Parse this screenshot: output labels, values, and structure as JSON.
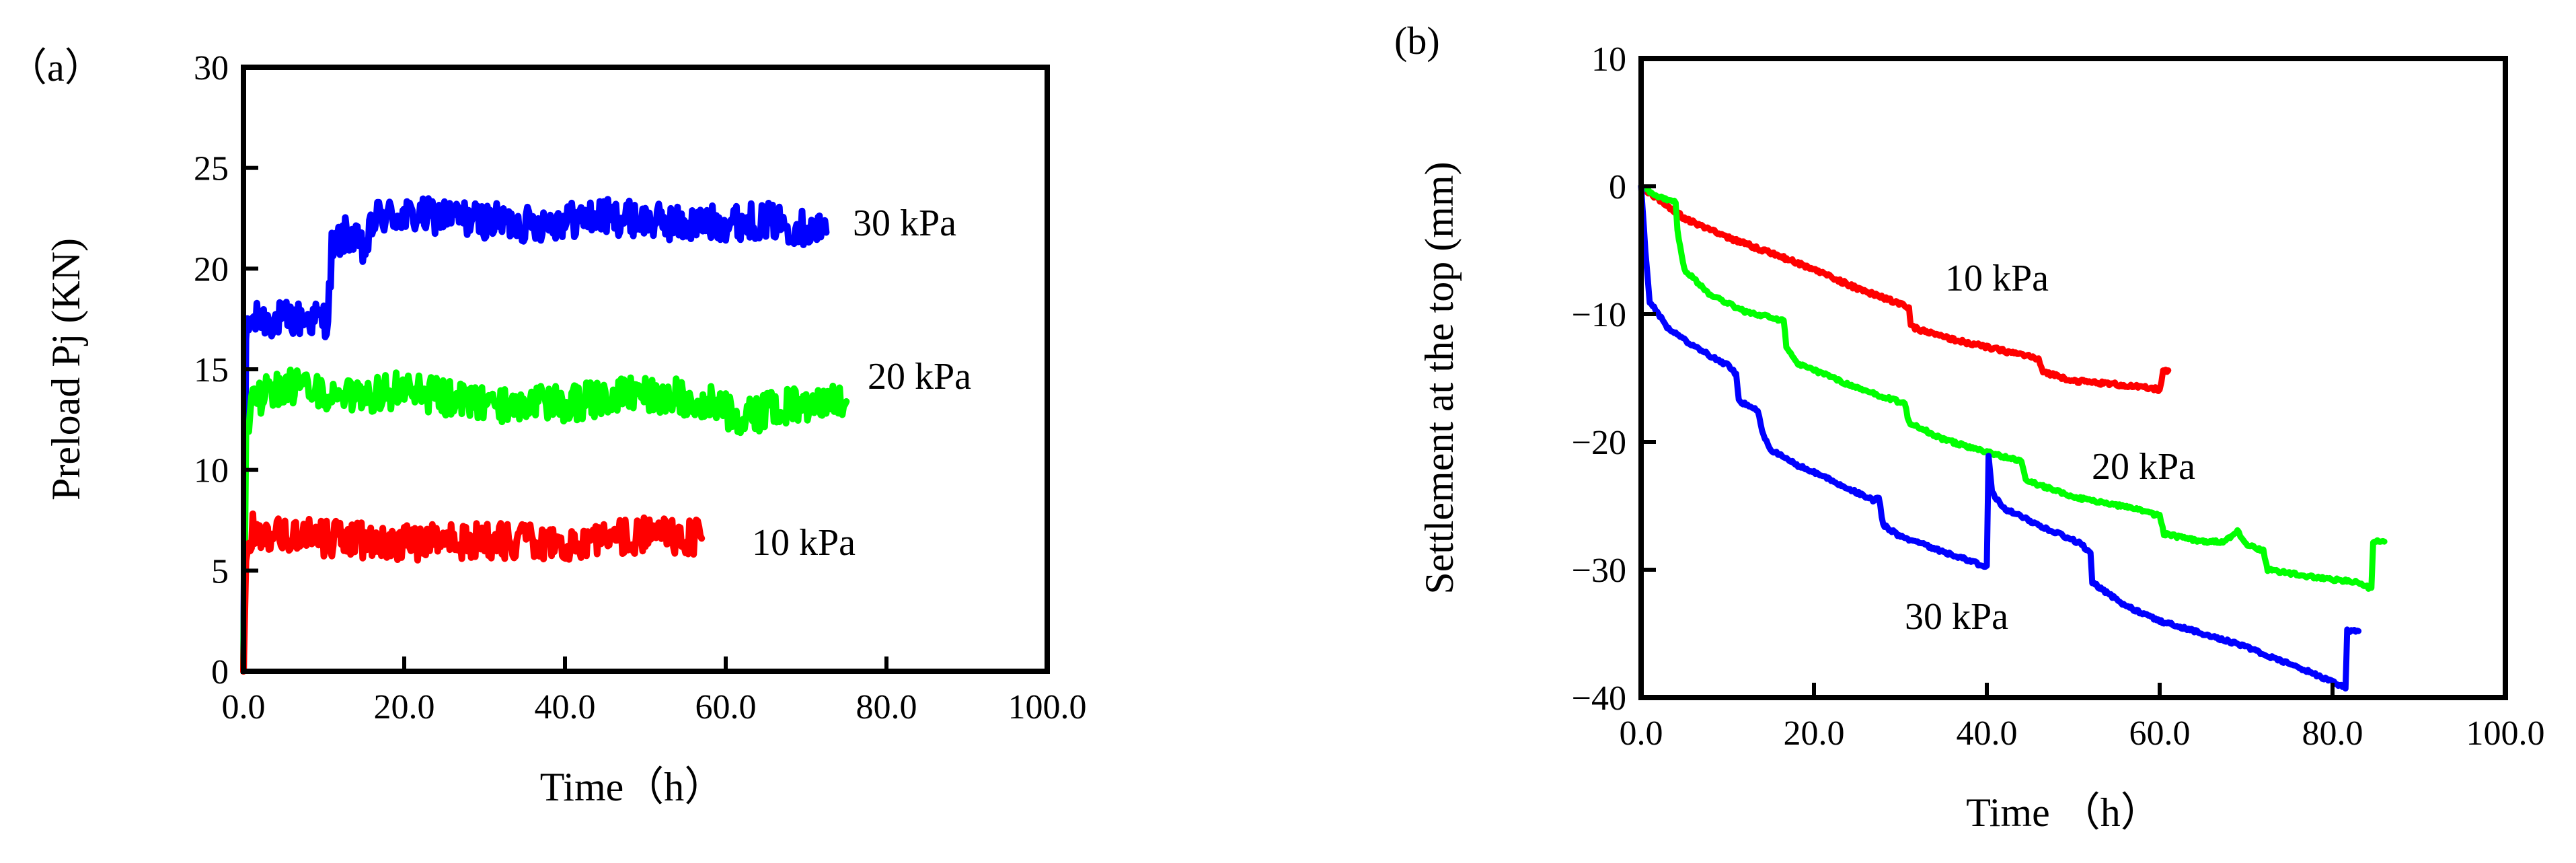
{
  "chart_data": [
    {
      "panel_label": "（a）",
      "type": "line",
      "title": "",
      "xlabel": "Time（h）",
      "ylabel": "Preload Pj (KN)",
      "xlim": [
        0,
        100
      ],
      "ylim": [
        0,
        30
      ],
      "xticks": [
        0,
        20,
        40,
        60,
        80,
        100
      ],
      "xtick_labels": [
        "0.0",
        "20.0",
        "40.0",
        "60.0",
        "80.0",
        "100.0"
      ],
      "yticks": [
        0,
        5,
        10,
        15,
        20,
        25,
        30
      ],
      "ytick_labels": [
        "0",
        "5",
        "10",
        "15",
        "20",
        "25",
        "30"
      ],
      "grid": false,
      "series": [
        {
          "name": "30 kPa",
          "label": "30 kPa",
          "color": "#0000ff",
          "noise": 0.9,
          "points": [
            [
              0,
              0
            ],
            [
              0.3,
              16.5
            ],
            [
              1,
              17.4
            ],
            [
              5,
              17.5
            ],
            [
              10.5,
              17.5
            ],
            [
              11,
              21.0
            ],
            [
              13,
              21.8
            ],
            [
              15,
              20.8
            ],
            [
              16.5,
              22.6
            ],
            [
              25,
              22.6
            ],
            [
              35,
              22.2
            ],
            [
              45,
              22.6
            ],
            [
              55,
              22.2
            ],
            [
              65,
              22.4
            ],
            [
              72.5,
              21.8
            ]
          ]
        },
        {
          "name": "20 kPa",
          "label": "20 kPa",
          "color": "#00ff00",
          "noise": 0.9,
          "points": [
            [
              0,
              0
            ],
            [
              0.3,
              12.0
            ],
            [
              1,
              13.5
            ],
            [
              5,
              14.2
            ],
            [
              12,
              13.5
            ],
            [
              20,
              14.0
            ],
            [
              30,
              13.2
            ],
            [
              40,
              13.3
            ],
            [
              50,
              13.8
            ],
            [
              57,
              13.5
            ],
            [
              62,
              12.6
            ],
            [
              68,
              13.2
            ],
            [
              75,
              13.4
            ]
          ]
        },
        {
          "name": "10 kPa",
          "label": "10 kPa",
          "color": "#ff0000",
          "noise": 0.9,
          "points": [
            [
              0,
              0
            ],
            [
              0.3,
              5.5
            ],
            [
              1,
              7.0
            ],
            [
              10,
              6.6
            ],
            [
              20,
              6.4
            ],
            [
              30,
              6.5
            ],
            [
              40,
              6.3
            ],
            [
              50,
              6.8
            ],
            [
              57,
              6.6
            ]
          ]
        }
      ]
    },
    {
      "panel_label": "(b)",
      "type": "line",
      "title": "",
      "xlabel": "Time （h）",
      "ylabel": "Settlement at the top (mm)",
      "xlim": [
        0,
        100
      ],
      "ylim": [
        -40,
        10
      ],
      "xticks": [
        0,
        20,
        40,
        60,
        80,
        100
      ],
      "xtick_labels": [
        "0.0",
        "20.0",
        "40.0",
        "60.0",
        "80.0",
        "100.0"
      ],
      "yticks": [
        -40,
        -30,
        -20,
        -10,
        0,
        10
      ],
      "ytick_labels": [
        "−40",
        "−30",
        "−20",
        "−10",
        "0",
        "10"
      ],
      "grid": false,
      "series": [
        {
          "name": "10 kPa",
          "label": "10 kPa",
          "color": "#ff0000",
          "noise": 0.15,
          "points": [
            [
              0,
              0
            ],
            [
              2,
              -1.0
            ],
            [
              5,
              -2.5
            ],
            [
              10,
              -4.0
            ],
            [
              15,
              -5.2
            ],
            [
              20,
              -6.5
            ],
            [
              25,
              -8.0
            ],
            [
              30,
              -9.2
            ],
            [
              31,
              -9.5
            ],
            [
              31.2,
              -11.0
            ],
            [
              35,
              -11.8
            ],
            [
              40,
              -12.6
            ],
            [
              45,
              -13.3
            ],
            [
              46,
              -13.6
            ],
            [
              46.5,
              -14.5
            ],
            [
              50,
              -15.2
            ],
            [
              55,
              -15.5
            ],
            [
              60,
              -15.9
            ],
            [
              60.4,
              -14.5
            ],
            [
              61,
              -14.4
            ]
          ]
        },
        {
          "name": "20 kPa",
          "label": "20 kPa",
          "color": "#00ff00",
          "noise": 0.12,
          "points": [
            [
              0,
              0
            ],
            [
              2,
              -0.8
            ],
            [
              4,
              -1.2
            ],
            [
              4.2,
              -3.5
            ],
            [
              5,
              -6.5
            ],
            [
              8,
              -8.5
            ],
            [
              12,
              -9.8
            ],
            [
              16.5,
              -10.5
            ],
            [
              16.8,
              -12.5
            ],
            [
              18,
              -13.8
            ],
            [
              25,
              -15.8
            ],
            [
              30.5,
              -17.0
            ],
            [
              31,
              -18.5
            ],
            [
              35,
              -19.8
            ],
            [
              40,
              -20.8
            ],
            [
              44,
              -21.5
            ],
            [
              44.5,
              -23.0
            ],
            [
              50,
              -24.3
            ],
            [
              57,
              -25.2
            ],
            [
              60,
              -25.8
            ],
            [
              60.5,
              -27.2
            ],
            [
              65,
              -27.8
            ],
            [
              67.5,
              -27.8
            ],
            [
              69,
              -27.0
            ],
            [
              70,
              -28.0
            ],
            [
              72,
              -28.5
            ],
            [
              72.5,
              -30.0
            ],
            [
              78,
              -30.6
            ],
            [
              83,
              -31.0
            ],
            [
              84.5,
              -31.5
            ],
            [
              84.7,
              -27.8
            ],
            [
              86,
              -27.8
            ]
          ]
        },
        {
          "name": "30 kPa",
          "label": "30 kPa",
          "color": "#0000ff",
          "noise": 0.12,
          "points": [
            [
              0,
              0
            ],
            [
              0.5,
              -5.0
            ],
            [
              1,
              -9.0
            ],
            [
              3,
              -11.0
            ],
            [
              6,
              -12.5
            ],
            [
              10,
              -14.0
            ],
            [
              11,
              -14.7
            ],
            [
              11.3,
              -16.8
            ],
            [
              13.5,
              -17.5
            ],
            [
              14,
              -19.2
            ],
            [
              15,
              -20.6
            ],
            [
              18,
              -21.8
            ],
            [
              22,
              -23.0
            ],
            [
              27,
              -24.6
            ],
            [
              27.5,
              -24.3
            ],
            [
              28,
              -26.5
            ],
            [
              30,
              -27.4
            ],
            [
              35,
              -28.6
            ],
            [
              38,
              -29.3
            ],
            [
              40,
              -29.8
            ],
            [
              40.2,
              -21.0
            ],
            [
              40.6,
              -24.0
            ],
            [
              42,
              -25.2
            ],
            [
              46,
              -26.5
            ],
            [
              51,
              -28.0
            ],
            [
              52,
              -28.8
            ],
            [
              52.2,
              -31.0
            ],
            [
              56,
              -32.8
            ],
            [
              60,
              -34.0
            ],
            [
              65,
              -35.0
            ],
            [
              70,
              -36.0
            ],
            [
              72,
              -36.6
            ],
            [
              77,
              -37.9
            ],
            [
              80,
              -38.8
            ],
            [
              81.5,
              -39.2
            ],
            [
              81.7,
              -34.8
            ],
            [
              83,
              -34.8
            ]
          ]
        }
      ]
    }
  ]
}
